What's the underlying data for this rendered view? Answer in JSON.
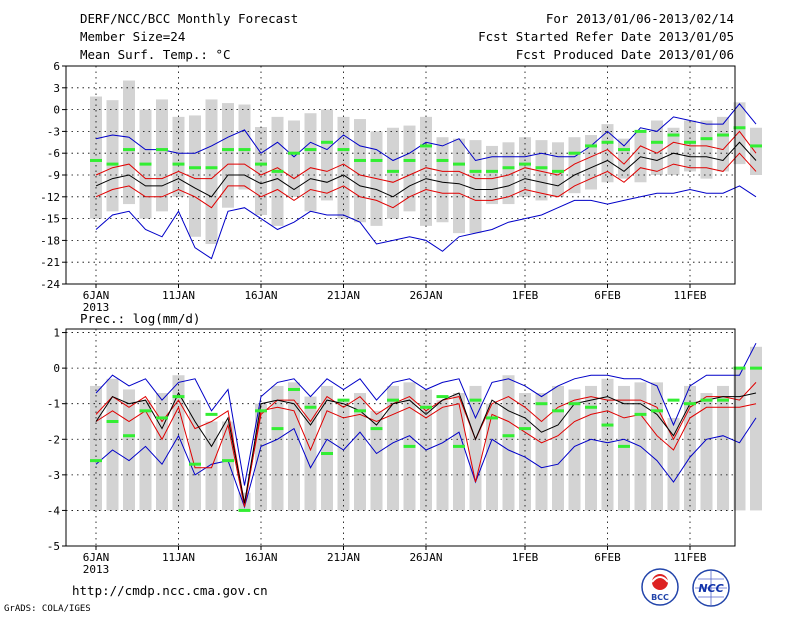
{
  "header": {
    "title": "DERF/NCC/BCC Monthly Forecast",
    "members": "Member Size=24",
    "variable": "Mean Surf. Temp.: °C",
    "period": "For 2013/01/06-2013/02/14",
    "refer_date": "Fcst Started Refer Date 2013/01/05",
    "produced_date": "Fcst Produced Date 2013/01/06"
  },
  "footer": {
    "url": "http://cmdp.ncc.cma.gov.cn",
    "credit": "GrADS: COLA/IGES",
    "logo_bcc": "BCC",
    "logo_ncc": "NCC"
  },
  "colors": {
    "box": "#d3d3d3",
    "mean": "#000000",
    "inner": "#e00000",
    "outer": "#0000c8",
    "median": "#33ee33"
  },
  "chart_data": [
    {
      "type": "line",
      "name": "temperature",
      "title": "Mean Surf. Temp.: °C",
      "ylim": [
        -24,
        6
      ],
      "yticks": [
        6,
        3,
        0,
        -3,
        -6,
        -9,
        -12,
        -15,
        -18,
        -21,
        -24
      ],
      "xticks": [
        {
          "day": 0,
          "label": "6JAN",
          "sub": "2013"
        },
        {
          "day": 5,
          "label": "11JAN"
        },
        {
          "day": 10,
          "label": "16JAN"
        },
        {
          "day": 15,
          "label": "21JAN"
        },
        {
          "day": 20,
          "label": "26JAN"
        },
        {
          "day": 26,
          "label": "1FEB"
        },
        {
          "day": 31,
          "label": "6FEB"
        },
        {
          "day": 36,
          "label": "11FEB"
        }
      ],
      "series": [
        {
          "name": "max",
          "values": [
            1.8,
            1.3,
            4.0,
            0.0,
            1.4,
            -1.0,
            -0.8,
            1.4,
            0.9,
            0.7,
            -2.4,
            -1.0,
            -1.5,
            -0.5,
            0.0,
            -1.0,
            -1.3,
            -3.0,
            -2.5,
            -2.2,
            -1.0,
            -3.8,
            -4.0,
            -4.2,
            -5.0,
            -4.5,
            -3.8,
            -4.2,
            -4.5,
            -3.8,
            -3.5,
            -2.0,
            -4.0,
            -2.8,
            -1.5,
            -2.5,
            -1.5,
            -1.5,
            -1.0,
            1.0,
            -2.5
          ]
        },
        {
          "name": "min",
          "values": [
            -15.0,
            -14.0,
            -13.0,
            -15.0,
            -14.0,
            -12.0,
            -17.5,
            -18.5,
            -13.5,
            -11.0,
            -14.5,
            -16.0,
            -12.0,
            -14.0,
            -12.5,
            -15.0,
            -15.5,
            -16.0,
            -15.0,
            -14.0,
            -16.0,
            -15.5,
            -17.0,
            -17.0,
            -13.0,
            -13.0,
            -12.0,
            -12.5,
            -12.0,
            -11.5,
            -11.0,
            -10.0,
            -9.5,
            -10.0,
            -9.0,
            -9.0,
            -8.5,
            -9.5,
            -8.5,
            -7.5,
            -9.0
          ]
        },
        {
          "name": "outer_upper",
          "values": [
            -4.0,
            -3.5,
            -3.8,
            -5.5,
            -5.5,
            -6.0,
            -6.0,
            -5.0,
            -3.8,
            -2.8,
            -6.0,
            -4.5,
            -6.5,
            -4.5,
            -5.5,
            -3.5,
            -5.0,
            -5.5,
            -7.0,
            -6.0,
            -4.5,
            -5.0,
            -4.0,
            -7.0,
            -6.5,
            -6.5,
            -6.5,
            -6.0,
            -6.5,
            -6.5,
            -5.0,
            -3.0,
            -5.0,
            -2.5,
            -3.0,
            -1.0,
            -1.5,
            -2.0,
            -2.0,
            0.8,
            -2.0
          ]
        },
        {
          "name": "inner_upper",
          "values": [
            -9.0,
            -8.0,
            -7.5,
            -9.5,
            -9.5,
            -8.5,
            -9.5,
            -9.5,
            -7.5,
            -7.5,
            -9.0,
            -8.0,
            -9.5,
            -8.0,
            -8.5,
            -7.5,
            -9.0,
            -9.5,
            -10.0,
            -9.0,
            -8.0,
            -8.5,
            -8.5,
            -9.5,
            -9.5,
            -9.0,
            -8.0,
            -8.5,
            -9.0,
            -7.5,
            -6.5,
            -5.5,
            -7.5,
            -5.0,
            -6.0,
            -4.5,
            -5.0,
            -5.0,
            -5.5,
            -3.0,
            -6.0
          ]
        },
        {
          "name": "mean",
          "values": [
            -10.5,
            -9.5,
            -9.0,
            -10.5,
            -10.5,
            -9.5,
            -10.8,
            -12.0,
            -9.0,
            -9.0,
            -10.2,
            -9.5,
            -11.0,
            -9.5,
            -10.0,
            -9.0,
            -10.5,
            -11.0,
            -12.0,
            -10.5,
            -9.5,
            -10.0,
            -10.2,
            -11.0,
            -11.0,
            -10.5,
            -9.5,
            -10.0,
            -10.5,
            -9.0,
            -8.0,
            -7.0,
            -8.5,
            -6.5,
            -7.0,
            -6.0,
            -6.5,
            -6.5,
            -7.0,
            -4.5,
            -7.0
          ]
        },
        {
          "name": "inner_lower",
          "values": [
            -12.0,
            -11.0,
            -10.5,
            -12.0,
            -12.0,
            -11.0,
            -12.0,
            -13.5,
            -10.5,
            -10.5,
            -12.0,
            -11.0,
            -12.5,
            -11.0,
            -11.5,
            -10.5,
            -12.0,
            -12.5,
            -13.5,
            -12.0,
            -11.0,
            -11.5,
            -11.5,
            -12.5,
            -12.5,
            -12.0,
            -11.0,
            -11.5,
            -12.0,
            -10.5,
            -9.5,
            -8.5,
            -10.0,
            -8.0,
            -8.5,
            -7.5,
            -8.0,
            -8.0,
            -8.5,
            -6.0,
            -8.5
          ]
        },
        {
          "name": "outer_lower",
          "values": [
            -16.5,
            -14.5,
            -14.0,
            -16.5,
            -17.5,
            -14.0,
            -19.0,
            -20.5,
            -14.0,
            -13.5,
            -15.0,
            -16.5,
            -15.5,
            -14.0,
            -14.5,
            -14.5,
            -15.5,
            -18.5,
            -18.0,
            -17.5,
            -18.0,
            -19.5,
            -17.5,
            -17.0,
            -16.5,
            -15.5,
            -15.0,
            -14.5,
            -13.5,
            -12.5,
            -12.5,
            -13.0,
            -12.5,
            -12.0,
            -11.5,
            -11.5,
            -11.0,
            -11.5,
            -11.5,
            -10.5,
            -12.0
          ]
        },
        {
          "name": "median",
          "values": [
            -7.0,
            -7.5,
            -5.5,
            -7.5,
            -5.5,
            -7.5,
            -8.0,
            -8.0,
            -5.5,
            -5.5,
            -7.5,
            -8.5,
            -6.0,
            -5.5,
            -4.5,
            -5.5,
            -7.0,
            -7.0,
            -8.5,
            -7.0,
            -5.0,
            -7.0,
            -7.5,
            -8.5,
            -8.5,
            -8.0,
            -7.5,
            -8.0,
            -8.5,
            -6.0,
            -5.0,
            -4.5,
            -5.5,
            -3.0,
            -4.5,
            -3.5,
            -4.5,
            -4.0,
            -3.5,
            -2.5,
            -5.0
          ]
        }
      ]
    },
    {
      "type": "line",
      "name": "precipitation",
      "title": "Prec.: log(mm/d)",
      "ylim": [
        -5,
        1.1
      ],
      "yticks": [
        1,
        0,
        -1,
        -2,
        -3,
        -4,
        -5
      ],
      "xticks": [
        {
          "day": 0,
          "label": "6JAN",
          "sub": "2013"
        },
        {
          "day": 5,
          "label": "11JAN"
        },
        {
          "day": 10,
          "label": "16JAN"
        },
        {
          "day": 15,
          "label": "21JAN"
        },
        {
          "day": 20,
          "label": "26JAN"
        },
        {
          "day": 26,
          "label": "1FEB"
        },
        {
          "day": 31,
          "label": "6FEB"
        },
        {
          "day": 36,
          "label": "11FEB"
        }
      ],
      "series": [
        {
          "name": "max",
          "values": [
            -0.5,
            -0.3,
            -0.6,
            -0.9,
            -0.7,
            -0.2,
            -0.9,
            -1.5,
            -1.5,
            -3.5,
            -1.0,
            -0.5,
            -0.4,
            -0.8,
            -0.5,
            -0.9,
            -0.7,
            -1.2,
            -0.5,
            -0.4,
            -0.6,
            -0.9,
            -0.7,
            -0.5,
            -1.0,
            -0.2,
            -0.7,
            -0.7,
            -0.5,
            -0.6,
            -0.5,
            -0.3,
            -0.5,
            -0.4,
            -0.4,
            -1.4,
            -0.5,
            -0.7,
            -0.5,
            0.0,
            0.6
          ]
        },
        {
          "name": "min",
          "values": [
            -4.0,
            -4.0,
            -4.0,
            -4.0,
            -4.0,
            -4.0,
            -4.0,
            -4.0,
            -4.0,
            -4.0,
            -4.0,
            -4.0,
            -4.0,
            -4.0,
            -4.0,
            -4.0,
            -4.0,
            -4.0,
            -4.0,
            -4.0,
            -4.0,
            -4.0,
            -4.0,
            -4.0,
            -4.0,
            -4.0,
            -4.0,
            -4.0,
            -4.0,
            -4.0,
            -4.0,
            -4.0,
            -4.0,
            -4.0,
            -4.0,
            -4.0,
            -4.0,
            -4.0,
            -4.0,
            -4.0,
            -4.0
          ]
        },
        {
          "name": "outer_upper",
          "values": [
            -0.7,
            -0.2,
            -0.5,
            -0.3,
            -0.9,
            -0.4,
            -0.3,
            -1.2,
            -0.6,
            -3.3,
            -0.8,
            -0.4,
            -0.3,
            -0.8,
            -0.3,
            -0.6,
            -0.3,
            -0.9,
            -0.4,
            -0.3,
            -0.6,
            -0.4,
            -0.3,
            -1.4,
            -0.4,
            -0.3,
            -0.5,
            -0.8,
            -0.5,
            -0.3,
            -0.2,
            -0.2,
            -0.3,
            -0.3,
            -0.5,
            -1.6,
            -0.5,
            -0.2,
            -0.2,
            -0.2,
            0.7
          ]
        },
        {
          "name": "inner_upper",
          "values": [
            -1.3,
            -0.8,
            -1.1,
            -0.8,
            -1.5,
            -0.9,
            -1.7,
            -1.5,
            -1.2,
            -3.8,
            -1.3,
            -0.9,
            -0.9,
            -1.5,
            -0.8,
            -1.1,
            -0.8,
            -1.3,
            -1.0,
            -0.8,
            -1.2,
            -0.9,
            -0.8,
            -2.0,
            -1.0,
            -0.8,
            -1.1,
            -1.5,
            -1.1,
            -0.9,
            -0.8,
            -0.9,
            -0.9,
            -0.9,
            -1.1,
            -2.0,
            -1.1,
            -0.8,
            -0.8,
            -0.9,
            -0.4
          ]
        },
        {
          "name": "mean",
          "values": [
            -1.5,
            -0.8,
            -1.0,
            -0.9,
            -1.7,
            -0.7,
            -1.5,
            -2.2,
            -1.4,
            -3.8,
            -1.0,
            -0.9,
            -1.0,
            -1.6,
            -0.9,
            -1.0,
            -1.2,
            -1.6,
            -1.0,
            -0.9,
            -1.3,
            -0.9,
            -0.7,
            -2.0,
            -0.9,
            -1.2,
            -1.4,
            -1.8,
            -1.6,
            -1.0,
            -0.9,
            -0.8,
            -1.0,
            -1.0,
            -1.3,
            -1.9,
            -1.0,
            -0.9,
            -0.8,
            -0.8,
            -0.7
          ]
        },
        {
          "name": "inner_lower",
          "values": [
            -1.5,
            -1.2,
            -1.5,
            -1.2,
            -2.0,
            -1.1,
            -2.8,
            -2.8,
            -1.6,
            -3.9,
            -1.2,
            -1.1,
            -1.2,
            -2.3,
            -1.2,
            -1.4,
            -1.3,
            -1.5,
            -1.3,
            -1.1,
            -1.4,
            -1.1,
            -1.0,
            -3.2,
            -1.3,
            -1.5,
            -1.8,
            -2.1,
            -1.9,
            -1.5,
            -1.3,
            -1.2,
            -1.4,
            -1.3,
            -1.9,
            -2.3,
            -1.4,
            -1.1,
            -1.1,
            -1.1,
            -1.0
          ]
        },
        {
          "name": "outer_lower",
          "values": [
            -2.7,
            -2.3,
            -2.6,
            -2.2,
            -2.7,
            -1.9,
            -3.0,
            -2.7,
            -2.6,
            -3.9,
            -2.2,
            -2.0,
            -1.7,
            -2.8,
            -2.0,
            -2.3,
            -1.8,
            -2.4,
            -2.1,
            -1.9,
            -2.3,
            -2.1,
            -1.8,
            -3.2,
            -2.0,
            -2.3,
            -2.5,
            -2.8,
            -2.7,
            -2.2,
            -2.0,
            -2.1,
            -2.0,
            -2.2,
            -2.6,
            -3.2,
            -2.5,
            -2.0,
            -1.9,
            -2.1,
            -1.4
          ]
        },
        {
          "name": "median",
          "values": [
            -2.6,
            -1.5,
            -1.9,
            -1.2,
            -1.4,
            -0.8,
            -2.7,
            -1.3,
            -2.6,
            -4.0,
            -1.2,
            -1.7,
            -0.6,
            -1.1,
            -2.4,
            -0.9,
            -1.2,
            -1.7,
            -0.9,
            -2.2,
            -1.1,
            -0.8,
            -2.2,
            -0.9,
            -1.4,
            -1.9,
            -1.7,
            -1.0,
            -1.2,
            -1.0,
            -1.1,
            -1.6,
            -2.2,
            -1.3,
            -1.2,
            -0.9,
            -1.0,
            -0.9,
            -0.9,
            0.0,
            0.0
          ]
        }
      ]
    }
  ]
}
